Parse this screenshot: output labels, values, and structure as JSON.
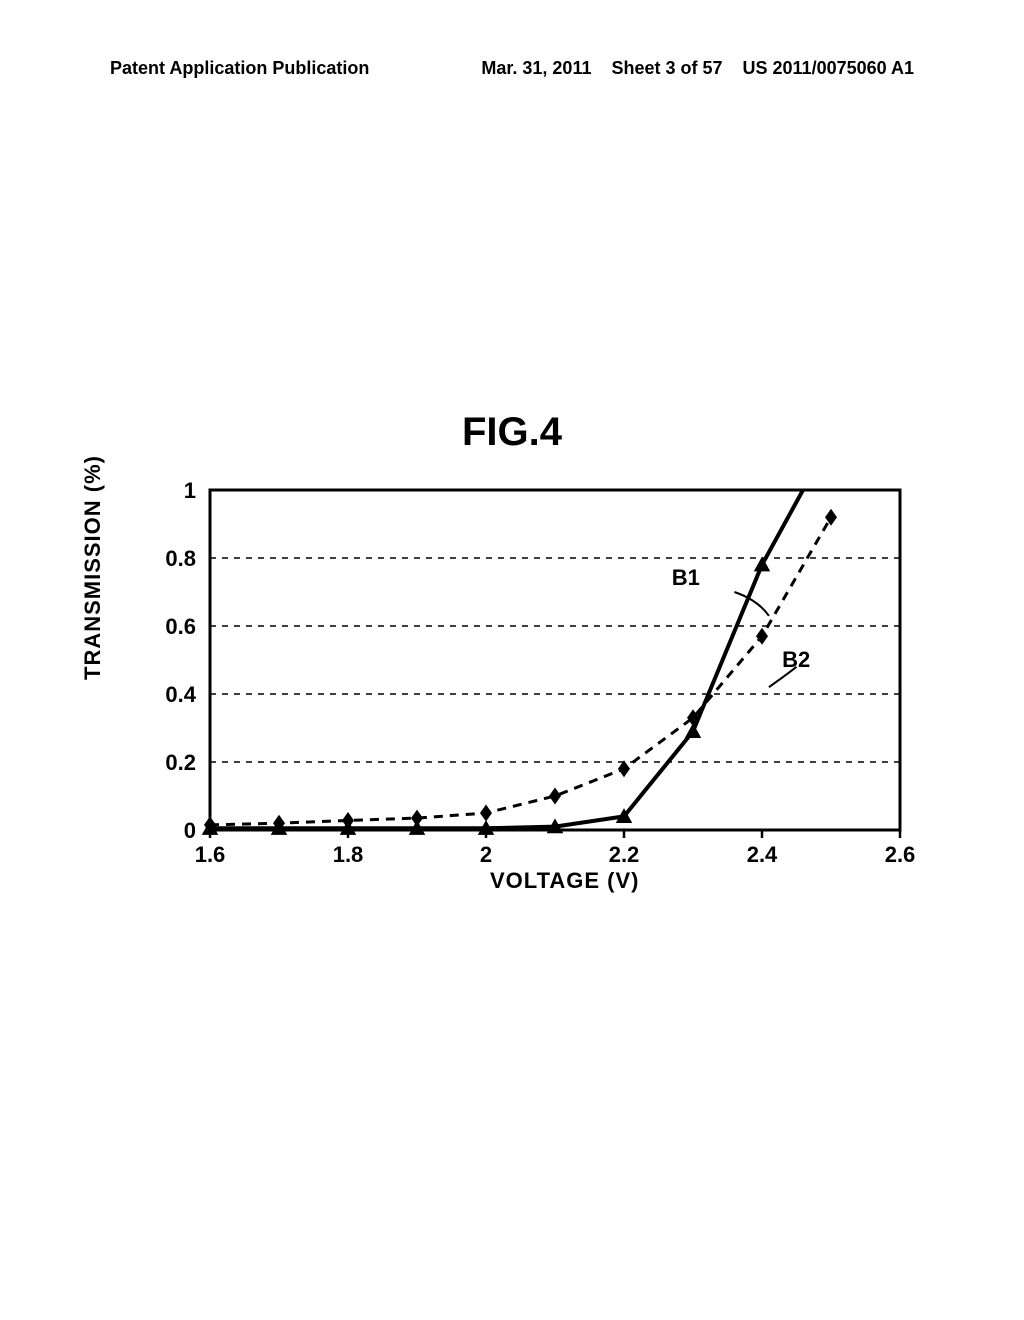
{
  "header": {
    "left1": "Patent Application Publication",
    "center": "Mar. 31, 2011",
    "sheet": "Sheet 3 of 57",
    "right": "US 2011/0075060 A1"
  },
  "figure": {
    "title": "FIG.4",
    "xlabel": "VOLTAGE (V)",
    "ylabel": "TRANSMISSION (%)",
    "xlim": [
      1.6,
      2.6
    ],
    "ylim": [
      0,
      1
    ],
    "xtick_labels": [
      "1.6",
      "1.8",
      "2",
      "2.2",
      "2.4",
      "2.6"
    ],
    "xtick_values": [
      1.6,
      1.8,
      2.0,
      2.2,
      2.4,
      2.6
    ],
    "ytick_labels": [
      "0",
      "0.2",
      "0.4",
      "0.6",
      "0.8",
      "1"
    ],
    "ytick_values": [
      0,
      0.2,
      0.4,
      0.6,
      0.8,
      1
    ],
    "grid_dashed": true,
    "grid_color": "#000000",
    "axis_color": "#000000",
    "plot_bg": "#ffffff",
    "series": {
      "B1": {
        "label": "B1",
        "label_pos": {
          "x": 2.31,
          "y": 0.72
        },
        "leader": {
          "from": {
            "x": 2.36,
            "y": 0.7
          },
          "to": {
            "x": 2.41,
            "y": 0.63
          }
        },
        "line_style": "solid",
        "line_width": 4,
        "marker": "triangle",
        "marker_size": 11,
        "color": "#000000",
        "x": [
          1.6,
          1.7,
          1.8,
          1.9,
          2.0,
          2.1,
          2.2,
          2.3,
          2.4,
          2.5
        ],
        "y": [
          0.005,
          0.005,
          0.005,
          0.005,
          0.005,
          0.01,
          0.04,
          0.29,
          0.78,
          1.15
        ]
      },
      "B2": {
        "label": "B2",
        "label_pos": {
          "x": 2.47,
          "y": 0.48
        },
        "leader": {
          "from": {
            "x": 2.45,
            "y": 0.48
          },
          "to": {
            "x": 2.41,
            "y": 0.42
          }
        },
        "line_style": "dashed",
        "line_width": 3,
        "marker": "diamond",
        "marker_size": 10,
        "color": "#000000",
        "x": [
          1.6,
          1.7,
          1.8,
          1.9,
          2.0,
          2.1,
          2.2,
          2.3,
          2.4,
          2.5
        ],
        "y": [
          0.015,
          0.02,
          0.028,
          0.035,
          0.05,
          0.1,
          0.18,
          0.33,
          0.57,
          0.92
        ]
      }
    }
  }
}
